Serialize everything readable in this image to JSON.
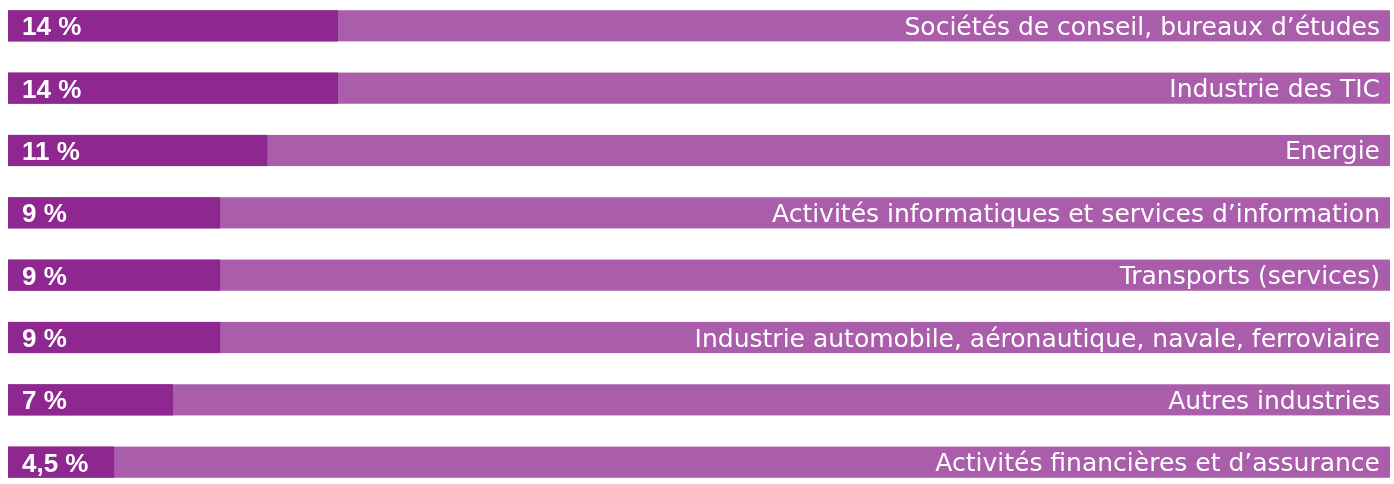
{
  "chart_data": {
    "type": "bar",
    "orientation": "horizontal",
    "categories": [
      "Sociétés de conseil, bureaux d’études",
      "Industrie des TIC",
      "Energie",
      "Activités informatiques et services d’information",
      "Transports (services)",
      "Industrie automobile,  aéronautique, navale, ferroviaire",
      "Autres industries",
      "Activités financières et d’assurance"
    ],
    "values": [
      14,
      14,
      11,
      9,
      9,
      9,
      7,
      4.5
    ],
    "value_labels": [
      "14 %",
      "14 %",
      "11 %",
      "9 %",
      "9 %",
      "9 %",
      "7 %",
      "4,5 %"
    ],
    "color": "#8e2790"
  }
}
